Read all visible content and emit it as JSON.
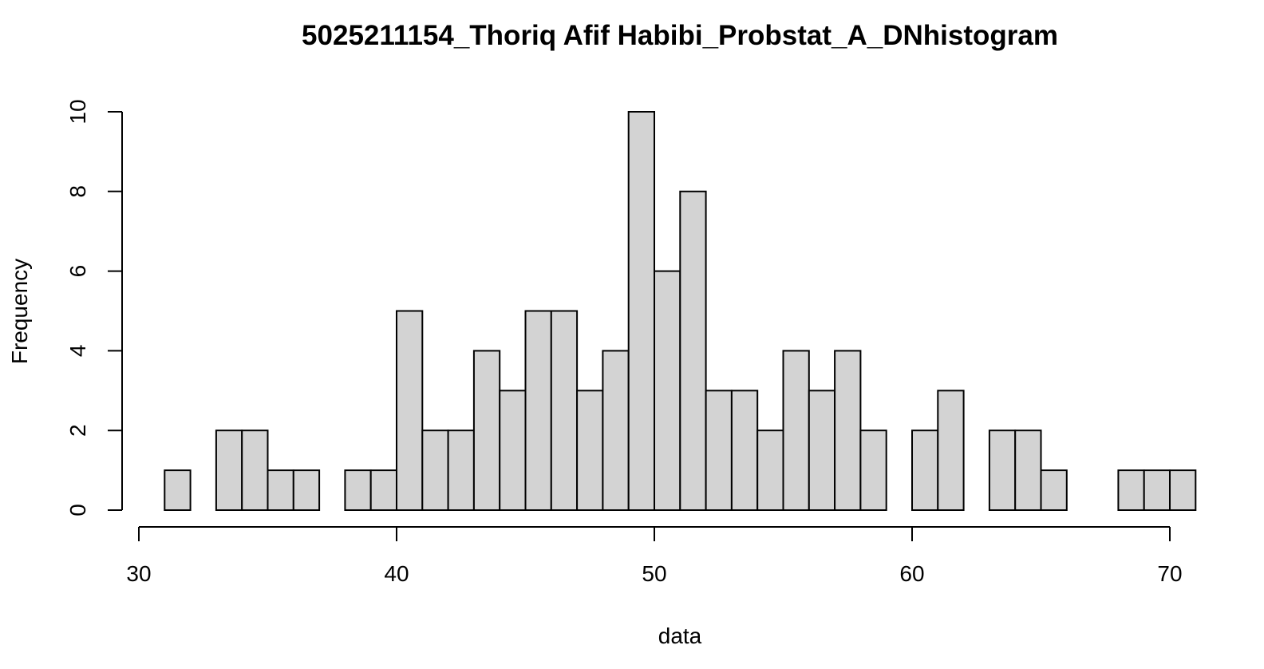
{
  "chart_data": {
    "type": "bar",
    "title": "5025211154_Thoriq Afif Habibi_Probstat_A_DNhistogram",
    "xlabel": "data",
    "ylabel": "Frequency",
    "xlim": [
      30,
      70
    ],
    "ylim": [
      0,
      10
    ],
    "x_ticks": [
      "30",
      "40",
      "50",
      "60",
      "70"
    ],
    "y_ticks": [
      "0",
      "2",
      "4",
      "6",
      "8",
      "10"
    ],
    "bin_width": 1,
    "bin_starts": [
      31,
      32,
      33,
      34,
      35,
      36,
      37,
      38,
      39,
      40,
      41,
      42,
      43,
      44,
      45,
      46,
      47,
      48,
      49,
      50,
      51,
      52,
      53,
      54,
      55,
      56,
      57,
      58,
      59,
      60,
      61,
      62,
      63,
      64,
      65,
      66,
      67,
      68,
      69,
      70
    ],
    "values": [
      1,
      0,
      2,
      2,
      1,
      1,
      0,
      1,
      1,
      5,
      2,
      2,
      4,
      3,
      5,
      5,
      3,
      4,
      10,
      6,
      8,
      3,
      3,
      2,
      4,
      3,
      4,
      2,
      0,
      2,
      3,
      0,
      2,
      2,
      1,
      0,
      0,
      1,
      1,
      1
    ],
    "bar_color": "#d3d3d3",
    "bar_edge_color": "#000000",
    "grid": false
  }
}
